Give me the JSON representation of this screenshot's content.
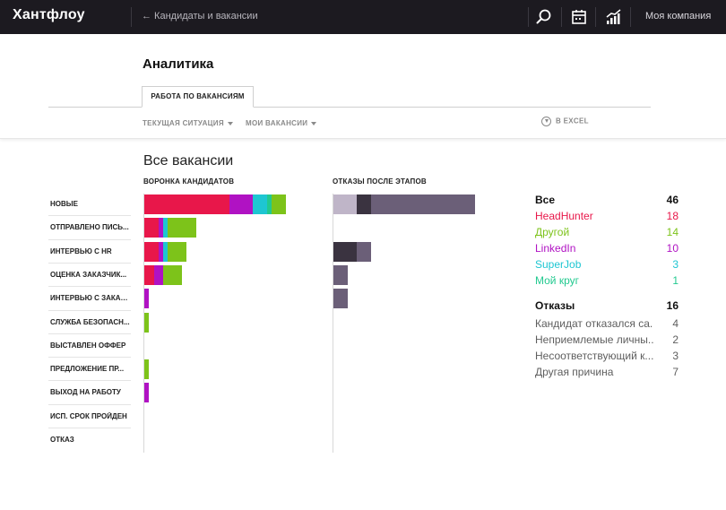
{
  "app": {
    "logo": "Хантфлоу",
    "back_link": "← Кандидаты и вакансии",
    "company": "Моя компания"
  },
  "page": {
    "title": "Аналитика",
    "tab": "РАБОТА ПО ВАКАНСИЯМ",
    "filter_situation": "ТЕКУЩАЯ СИТУАЦИЯ",
    "filter_vacancies": "МОИ ВАКАНСИИ",
    "excel": "В EXCEL"
  },
  "report": {
    "title": "Все вакансии",
    "funnel_header": "ВОРОНКА КАНДИДАТОВ",
    "rejections_header": "ОТКАЗЫ ПОСЛЕ ЭТАПОВ",
    "stages": [
      "НОВЫЕ",
      "ОТПРАВЛЕНО ПИСЬ...",
      "ИНТЕРВЬЮ С HR",
      "ОЦЕНКА ЗАКАЗЧИК...",
      "ИНТЕРВЬЮ С ЗАКАЗ...",
      "СЛУЖБА БЕЗОПАСН...",
      "ВЫСТАВЛЕН ОФФЕР",
      "ПРЕДЛОЖЕНИЕ ПР...",
      "ВЫХОД НА РАБОТУ",
      "ИСП. СРОК ПРОЙДЕН",
      "ОТКАЗ"
    ]
  },
  "colors": {
    "HeadHunter": "#e8174a",
    "Другой": "#7dc31a",
    "LinkedIn": "#b012c3",
    "SuperJob": "#1ec6d2",
    "Мой круг": "#22c98f",
    "rej_0": "#bfb5c8",
    "rej_1": "#3a3340",
    "rej_2": "#6b5f78"
  },
  "chart_data": {
    "type": "bar",
    "funnel": {
      "categories": [
        "НОВЫЕ",
        "ОТПРАВЛЕНО ПИСЬ...",
        "ИНТЕРВЬЮ С HR",
        "ОЦЕНКА ЗАКАЗЧИК...",
        "ИНТЕРВЬЮ С ЗАКАЗ...",
        "СЛУЖБА БЕЗОПАСН...",
        "ВЫСТАВЛЕН ОФФЕР",
        "ПРЕДЛОЖЕНИЕ ПР...",
        "ВЫХОД НА РАБОТУ",
        "ИСП. СРОК ПРОЙДЕН",
        "ОТКАЗ"
      ],
      "series": [
        {
          "name": "HeadHunter",
          "values": [
            18,
            3,
            3,
            2,
            0,
            0,
            0,
            0,
            0,
            0,
            0
          ]
        },
        {
          "name": "LinkedIn",
          "values": [
            5,
            1,
            1,
            2,
            1,
            0,
            0,
            0,
            1,
            0,
            0
          ]
        },
        {
          "name": "SuperJob",
          "values": [
            3,
            1,
            1,
            0,
            0,
            0,
            0,
            0,
            0,
            0,
            0
          ]
        },
        {
          "name": "Мой круг",
          "values": [
            1,
            0,
            0,
            0,
            0,
            0,
            0,
            0,
            0,
            0,
            0
          ]
        },
        {
          "name": "Другой",
          "values": [
            3,
            6,
            4,
            4,
            0,
            1,
            0,
            1,
            0,
            0,
            0
          ]
        }
      ]
    },
    "rejections": {
      "categories": [
        "НОВЫЕ",
        "ОТПРАВЛЕНО ПИСЬ...",
        "ИНТЕРВЬЮ С HR",
        "ОЦЕНКА ЗАКАЗЧИК...",
        "ИНТЕРВЬЮ С ЗАКАЗ...",
        "СЛУЖБА БЕЗОПАСН...",
        "ВЫСТАВЛЕН ОФФЕР",
        "ПРЕДЛОЖЕНИЕ ПР...",
        "ВЫХОД НА РАБОТУ",
        "ИСП. СРОК ПРОЙДЕН",
        "ОТКАЗ"
      ],
      "series": [
        {
          "values": [
            5,
            0,
            0,
            0,
            0,
            0,
            0,
            0,
            0,
            0,
            0
          ]
        },
        {
          "values": [
            3,
            0,
            5,
            0,
            0,
            0,
            0,
            0,
            0,
            0,
            0
          ]
        },
        {
          "values": [
            22,
            0,
            3,
            3,
            3,
            0,
            0,
            0,
            0,
            0,
            0
          ]
        }
      ]
    },
    "xlim": [
      0,
      36
    ]
  },
  "stats": {
    "sources_label": "Все",
    "sources_total": "46",
    "sources": [
      {
        "name": "HeadHunter",
        "value": "18",
        "color": "#e8174a"
      },
      {
        "name": "Другой",
        "value": "14",
        "color": "#7dc31a"
      },
      {
        "name": "LinkedIn",
        "value": "10",
        "color": "#b012c3"
      },
      {
        "name": "SuperJob",
        "value": "3",
        "color": "#1ec6d2"
      },
      {
        "name": "Мой круг",
        "value": "1",
        "color": "#22c98f"
      }
    ],
    "rejections_label": "Отказы",
    "rejections_total": "16",
    "reasons": [
      {
        "name": "Кандидат отказался са...",
        "value": "4"
      },
      {
        "name": "Неприемлемые личны...",
        "value": "2"
      },
      {
        "name": "Несоответствующий к...",
        "value": "3"
      },
      {
        "name": "Другая причина",
        "value": "7"
      }
    ]
  }
}
